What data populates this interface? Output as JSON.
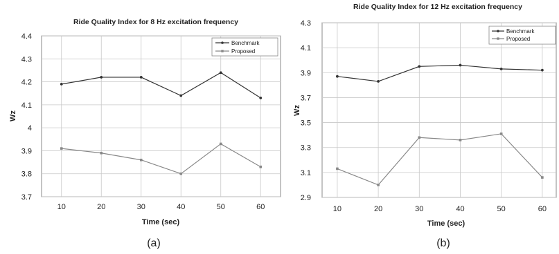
{
  "chart_data": [
    {
      "type": "line",
      "title": "Ride Quality Index for 8 Hz excitation frequency",
      "xlabel": "Time (sec)",
      "ylabel": "Wz",
      "caption": "(a)",
      "x": [
        10,
        20,
        30,
        40,
        50,
        60
      ],
      "xticks": [
        "10",
        "20",
        "30",
        "40",
        "50",
        "60"
      ],
      "ylim": [
        3.7,
        4.4
      ],
      "yticks": [
        "3.7",
        "3.8",
        "3.9",
        "4",
        "4.1",
        "4.2",
        "4.3",
        "4.4"
      ],
      "grid": true,
      "legend_position": "top-right",
      "series": [
        {
          "name": "Benchmark",
          "color": "#333333",
          "values": [
            4.19,
            4.22,
            4.22,
            4.14,
            4.24,
            4.13
          ]
        },
        {
          "name": "Proposed",
          "color": "#888888",
          "values": [
            3.91,
            3.89,
            3.86,
            3.8,
            3.93,
            3.83
          ]
        }
      ]
    },
    {
      "type": "line",
      "title": "Ride Quality Index for 12 Hz excitation frequency",
      "xlabel": "Time (sec)",
      "ylabel": "Wz",
      "caption": "(b)",
      "x": [
        10,
        20,
        30,
        40,
        50,
        60
      ],
      "xticks": [
        "10",
        "20",
        "30",
        "40",
        "50",
        "60"
      ],
      "ylim": [
        2.9,
        4.3
      ],
      "yticks": [
        "2.9",
        "3.1",
        "3.3",
        "3.5",
        "3.7",
        "3.9",
        "4.1",
        "4.3"
      ],
      "grid": true,
      "legend_position": "top-right",
      "series": [
        {
          "name": "Benchmark",
          "color": "#333333",
          "values": [
            3.87,
            3.83,
            3.95,
            3.96,
            3.93,
            3.92
          ]
        },
        {
          "name": "Proposed",
          "color": "#888888",
          "values": [
            3.13,
            3.0,
            3.38,
            3.36,
            3.41,
            3.06
          ]
        }
      ]
    }
  ]
}
